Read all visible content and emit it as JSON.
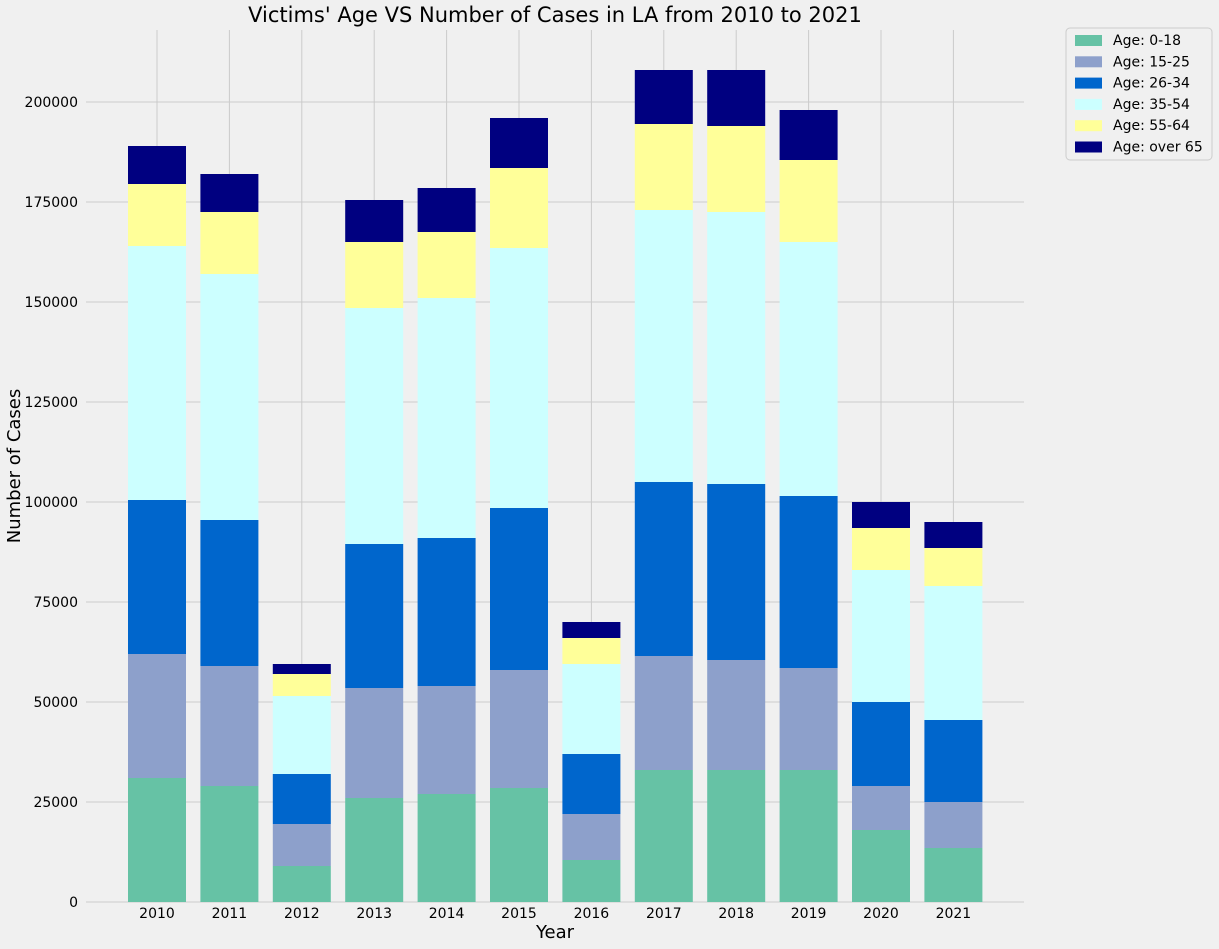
{
  "chart_data": {
    "type": "bar",
    "stacked": true,
    "title": "Victims' Age VS Number of Cases in LA from 2010 to 2021",
    "xlabel": "Year",
    "ylabel": "Number of Cases",
    "categories": [
      "2010",
      "2011",
      "2012",
      "2013",
      "2014",
      "2015",
      "2016",
      "2017",
      "2018",
      "2019",
      "2020",
      "2021"
    ],
    "ylim": [
      0,
      218000
    ],
    "yticks": [
      0,
      25000,
      50000,
      75000,
      100000,
      125000,
      150000,
      175000,
      200000
    ],
    "grid": true,
    "legend_position": "outside-top-right",
    "series": [
      {
        "name": "Age: 0-18",
        "color": "#66c2a5",
        "values": [
          31000,
          29000,
          9000,
          26000,
          27000,
          28500,
          10500,
          33000,
          33000,
          33000,
          18000,
          13500
        ]
      },
      {
        "name": "Age: 15-25",
        "color": "#8da0cb",
        "values": [
          31000,
          30000,
          10500,
          27500,
          27000,
          29500,
          11500,
          28500,
          27500,
          25500,
          11000,
          11500
        ]
      },
      {
        "name": "Age: 26-34",
        "color": "#0066cc",
        "values": [
          38500,
          36500,
          12500,
          36000,
          37000,
          40500,
          15000,
          43500,
          44000,
          43000,
          21000,
          20500
        ]
      },
      {
        "name": "Age: 35-54",
        "color": "#ccffff",
        "values": [
          63500,
          61500,
          19500,
          59000,
          60000,
          65000,
          22500,
          68000,
          68000,
          63500,
          33000,
          33500
        ]
      },
      {
        "name": "Age: 55-64",
        "color": "#ffff99",
        "values": [
          15500,
          15500,
          5500,
          16500,
          16500,
          20000,
          6500,
          21500,
          21500,
          20500,
          10500,
          9500
        ]
      },
      {
        "name": "Age: over 65",
        "color": "#000080",
        "values": [
          9500,
          9500,
          2500,
          10500,
          11000,
          12500,
          4000,
          13500,
          14000,
          12500,
          6500,
          6500
        ]
      }
    ]
  }
}
